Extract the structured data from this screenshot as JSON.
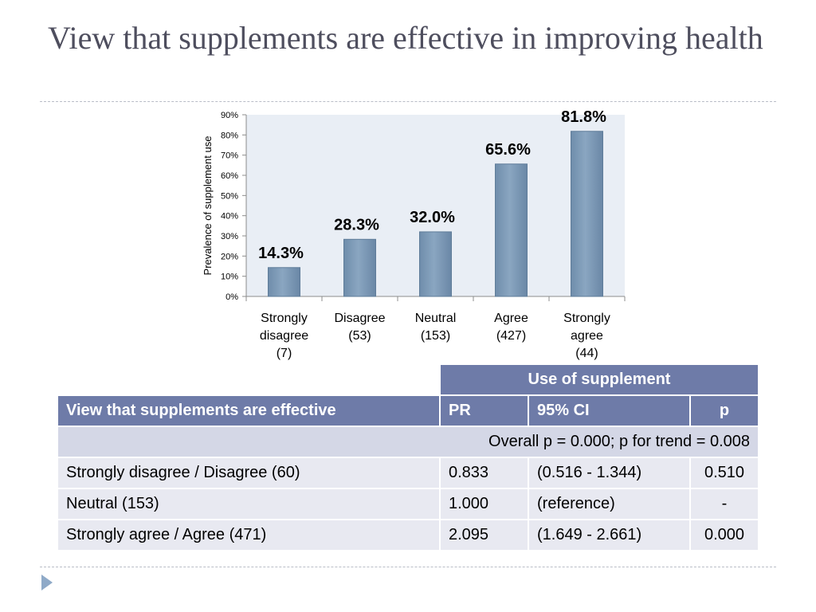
{
  "title": "View that supplements are effective in improving health",
  "chart_data": {
    "type": "bar",
    "categories": [
      "Strongly disagree (7)",
      "Disagree (53)",
      "Neutral (153)",
      "Agree (427)",
      "Strongly agree (44)"
    ],
    "category_lines": [
      [
        "Strongly",
        "disagree",
        "(7)"
      ],
      [
        "Disagree",
        "(53)"
      ],
      [
        "Neutral",
        "(153)"
      ],
      [
        "Agree",
        "(427)"
      ],
      [
        "Strongly",
        "agree",
        "(44)"
      ]
    ],
    "values": [
      14.3,
      28.3,
      32.0,
      65.6,
      81.8
    ],
    "data_labels": [
      "14.3%",
      "28.3%",
      "32.0%",
      "65.6%",
      "81.8%"
    ],
    "ylabel": "Prevalence of supplement use",
    "ylim": [
      0,
      90
    ],
    "yticks": [
      0,
      10,
      20,
      30,
      40,
      50,
      60,
      70,
      80,
      90
    ],
    "ytick_labels": [
      "0%",
      "10%",
      "20%",
      "30%",
      "40%",
      "50%",
      "60%",
      "70%",
      "80%",
      "90%"
    ],
    "grid": false,
    "bar_color": "#8aa6c1",
    "plot_background": "#e9eef5"
  },
  "table": {
    "group_header": "Use of supplement",
    "row_header": "View that supplements are effective",
    "columns": [
      "PR",
      "95% CI",
      "p"
    ],
    "overall": "Overall p = 0.000; p for trend = 0.008",
    "rows": [
      {
        "label": "Strongly disagree / Disagree (60)",
        "pr": "0.833",
        "ci": "(0.516 - 1.344)",
        "p": "0.510"
      },
      {
        "label": "Neutral (153)",
        "pr": "1.000",
        "ci": "(reference)",
        "p": "-"
      },
      {
        "label": "Strongly agree / Agree (471)",
        "pr": "2.095",
        "ci": "(1.649 - 2.661)",
        "p": "0.000"
      }
    ],
    "header_color": "#6e7ba8"
  }
}
